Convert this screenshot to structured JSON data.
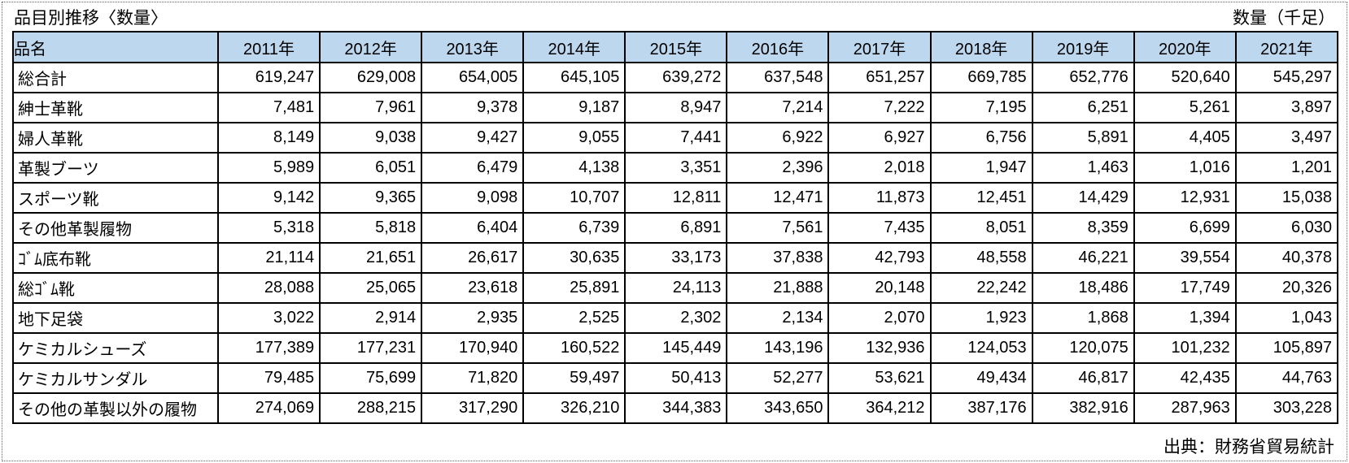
{
  "title": "品目別推移〈数量〉",
  "unit_label": "数量（千足）",
  "source_label": "出典：財務省貿易統計",
  "colors": {
    "header_bg": "#BDD7EE",
    "border": "#000000",
    "text": "#000000"
  },
  "chart_data": {
    "type": "table",
    "title": "品目別推移〈数量〉",
    "unit": "数量（千足）",
    "name_column_header": "品名",
    "columns": [
      "2011年",
      "2012年",
      "2013年",
      "2014年",
      "2015年",
      "2016年",
      "2017年",
      "2018年",
      "2019年",
      "2020年",
      "2021年"
    ],
    "rows": [
      {
        "label": "総合計",
        "values": [
          619247,
          629008,
          654005,
          645105,
          639272,
          637548,
          651257,
          669785,
          652776,
          520640,
          545297
        ]
      },
      {
        "label": "紳士革靴",
        "values": [
          7481,
          7961,
          9378,
          9187,
          8947,
          7214,
          7222,
          7195,
          6251,
          5261,
          3897
        ]
      },
      {
        "label": "婦人革靴",
        "values": [
          8149,
          9038,
          9427,
          9055,
          7441,
          6922,
          6927,
          6756,
          5891,
          4405,
          3497
        ]
      },
      {
        "label": "革製ブーツ",
        "values": [
          5989,
          6051,
          6479,
          4138,
          3351,
          2396,
          2018,
          1947,
          1463,
          1016,
          1201
        ]
      },
      {
        "label": "スポーツ靴",
        "values": [
          9142,
          9365,
          9098,
          10707,
          12811,
          12471,
          11873,
          12451,
          14429,
          12931,
          15038
        ]
      },
      {
        "label": "その他革製履物",
        "values": [
          5318,
          5818,
          6404,
          6739,
          6891,
          7561,
          7435,
          8051,
          8359,
          6699,
          6030
        ]
      },
      {
        "label": "ｺﾞﾑ底布靴",
        "values": [
          21114,
          21651,
          26617,
          30635,
          33173,
          37838,
          42793,
          48558,
          46221,
          39554,
          40378
        ]
      },
      {
        "label": "総ｺﾞﾑ靴",
        "values": [
          28088,
          25065,
          23618,
          25891,
          24113,
          21888,
          20148,
          22242,
          18486,
          17749,
          20326
        ]
      },
      {
        "label": "地下足袋",
        "values": [
          3022,
          2914,
          2935,
          2525,
          2302,
          2134,
          2070,
          1923,
          1868,
          1394,
          1043
        ]
      },
      {
        "label": "ケミカルシューズ",
        "values": [
          177389,
          177231,
          170940,
          160522,
          145449,
          143196,
          132936,
          124053,
          120075,
          101232,
          105897
        ]
      },
      {
        "label": "ケミカルサンダル",
        "values": [
          79485,
          75699,
          71820,
          59497,
          50413,
          52277,
          53621,
          49434,
          46817,
          42435,
          44763
        ]
      },
      {
        "label": "その他の革製以外の履物",
        "values": [
          274069,
          288215,
          317290,
          326210,
          344383,
          343650,
          364212,
          387176,
          382916,
          287963,
          303228
        ]
      }
    ]
  }
}
